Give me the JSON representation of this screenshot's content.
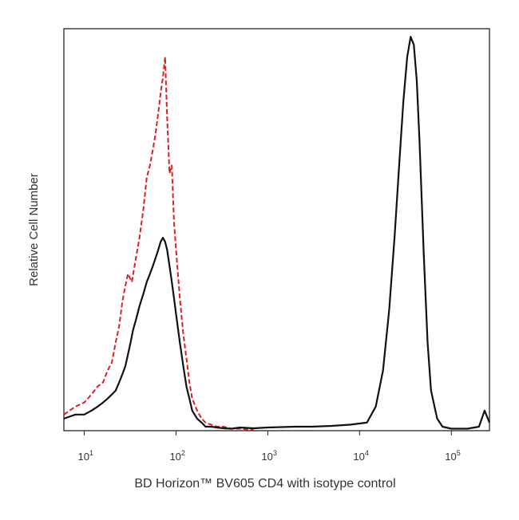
{
  "chart_data": {
    "type": "line",
    "xlabel": "BD Horizon™ BV605 CD4 with isotype control",
    "ylabel": "Relative Cell Number",
    "x_scale": "log",
    "xlim": [
      6,
      260000
    ],
    "ylim": [
      0,
      1
    ],
    "x_ticks": [
      {
        "value": 10,
        "base": "10",
        "exp": "1"
      },
      {
        "value": 100,
        "base": "10",
        "exp": "2"
      },
      {
        "value": 1000,
        "base": "10",
        "exp": "3"
      },
      {
        "value": 10000,
        "base": "10",
        "exp": "4"
      },
      {
        "value": 100000,
        "base": "10",
        "exp": "5"
      }
    ],
    "grid": false,
    "legend": "none",
    "series": [
      {
        "style": "dashed",
        "color": "#dd1f1f",
        "x": [
          6,
          8,
          10,
          12,
          14,
          16,
          18,
          20,
          22,
          24,
          26,
          28,
          30,
          33,
          36,
          40,
          44,
          48,
          52,
          56,
          60,
          64,
          68,
          72,
          76,
          80,
          85,
          90,
          95,
          100,
          110,
          120,
          130,
          140,
          150,
          170,
          190,
          210,
          240,
          280,
          330,
          400,
          500,
          600,
          700
        ],
        "y": [
          0.04,
          0.06,
          0.07,
          0.09,
          0.11,
          0.12,
          0.15,
          0.17,
          0.22,
          0.26,
          0.32,
          0.36,
          0.39,
          0.37,
          0.42,
          0.48,
          0.55,
          0.63,
          0.66,
          0.7,
          0.74,
          0.79,
          0.84,
          0.88,
          0.93,
          0.78,
          0.64,
          0.66,
          0.52,
          0.45,
          0.33,
          0.24,
          0.18,
          0.12,
          0.08,
          0.05,
          0.03,
          0.02,
          0.015,
          0.01,
          0.01,
          0.005,
          0.005,
          0.003,
          0.003
        ]
      },
      {
        "style": "solid",
        "color": "#111111",
        "x": [
          6,
          8,
          10,
          12,
          14,
          16,
          18,
          20,
          22,
          24,
          26,
          28,
          30,
          32,
          34,
          37,
          40,
          44,
          48,
          52,
          56,
          60,
          64,
          68,
          72,
          76,
          80,
          85,
          90,
          95,
          100,
          110,
          120,
          130,
          140,
          150,
          170,
          190,
          210,
          240,
          280,
          330,
          400,
          500,
          700,
          1000,
          2000,
          3000,
          5000,
          8000,
          12000,
          15000,
          18000,
          21000,
          24000,
          27000,
          30000,
          33000,
          36000,
          39000,
          42000,
          45000,
          50000,
          55000,
          60000,
          70000,
          80000,
          100000,
          150000,
          200000,
          230000,
          260000
        ],
        "y": [
          0.03,
          0.04,
          0.04,
          0.05,
          0.06,
          0.07,
          0.08,
          0.09,
          0.1,
          0.12,
          0.14,
          0.16,
          0.19,
          0.22,
          0.25,
          0.28,
          0.31,
          0.34,
          0.37,
          0.39,
          0.41,
          0.43,
          0.45,
          0.47,
          0.48,
          0.47,
          0.45,
          0.41,
          0.37,
          0.33,
          0.29,
          0.22,
          0.16,
          0.11,
          0.08,
          0.05,
          0.03,
          0.02,
          0.01,
          0.01,
          0.008,
          0.006,
          0.005,
          0.008,
          0.006,
          0.008,
          0.01,
          0.01,
          0.012,
          0.015,
          0.02,
          0.06,
          0.15,
          0.3,
          0.48,
          0.66,
          0.82,
          0.93,
          0.98,
          0.96,
          0.87,
          0.72,
          0.44,
          0.22,
          0.1,
          0.03,
          0.01,
          0.005,
          0.005,
          0.01,
          0.05,
          0.02
        ]
      }
    ]
  }
}
